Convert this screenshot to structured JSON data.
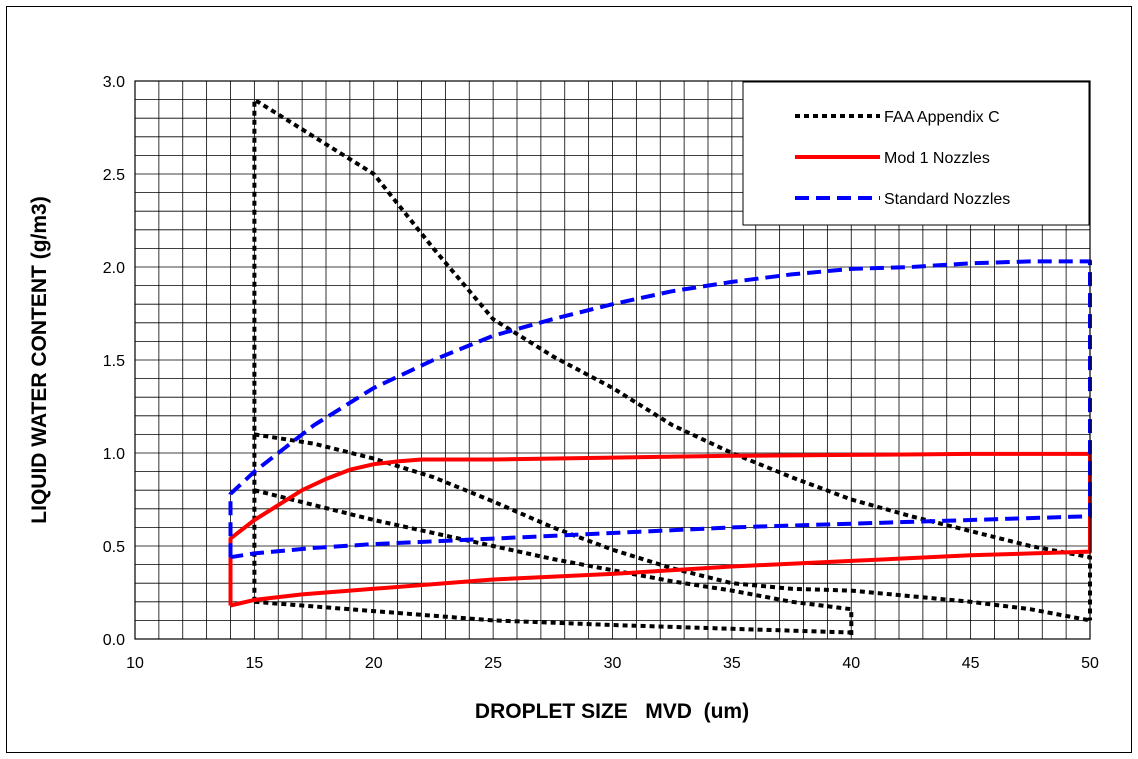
{
  "chart_data": {
    "type": "line",
    "xlabel": "DROPLET SIZE   MVD  (um)",
    "ylabel": "LIQUID WATER CONTENT (g/m3)",
    "xlim": [
      10,
      50
    ],
    "ylim": [
      0,
      3.0
    ],
    "x_ticks": [
      "10",
      "15",
      "20",
      "25",
      "30",
      "35",
      "40",
      "45",
      "50"
    ],
    "y_ticks": [
      "0.0",
      "0.5",
      "1.0",
      "1.5",
      "2.0",
      "2.5",
      "3.0"
    ],
    "grid": true,
    "legend_position": "top-right",
    "series": [
      {
        "name": "FAA Appendix C",
        "color": "#000000",
        "style": "dotted",
        "segments": [
          [
            [
              15,
              0.2
            ],
            [
              15,
              2.9
            ],
            [
              17.5,
              2.7
            ],
            [
              20,
              2.5
            ],
            [
              22.5,
              2.1
            ],
            [
              25,
              1.72
            ],
            [
              27.5,
              1.52
            ],
            [
              30,
              1.35
            ],
            [
              32.5,
              1.15
            ],
            [
              35,
              1.0
            ],
            [
              37.5,
              0.87
            ],
            [
              40,
              0.75
            ],
            [
              42.5,
              0.66
            ],
            [
              45,
              0.58
            ],
            [
              47.5,
              0.5
            ],
            [
              50,
              0.44
            ],
            [
              50,
              0.1
            ]
          ],
          [
            [
              15,
              0.2
            ],
            [
              20,
              0.15
            ],
            [
              25,
              0.1
            ],
            [
              30,
              0.075
            ],
            [
              35,
              0.055
            ],
            [
              40,
              0.035
            ]
          ],
          [
            [
              15,
              1.1
            ],
            [
              17.5,
              1.05
            ],
            [
              20,
              0.97
            ],
            [
              22.5,
              0.87
            ],
            [
              25,
              0.74
            ],
            [
              27.5,
              0.6
            ],
            [
              30,
              0.48
            ],
            [
              32.5,
              0.38
            ],
            [
              35,
              0.3
            ],
            [
              37.5,
              0.27
            ],
            [
              40,
              0.26
            ],
            [
              42.5,
              0.23
            ],
            [
              45,
              0.2
            ],
            [
              47.5,
              0.16
            ],
            [
              50,
              0.1
            ]
          ],
          [
            [
              15,
              0.8
            ],
            [
              17.5,
              0.72
            ],
            [
              20,
              0.64
            ],
            [
              22.5,
              0.57
            ],
            [
              25,
              0.5
            ],
            [
              27.5,
              0.43
            ],
            [
              30,
              0.37
            ],
            [
              32.5,
              0.31
            ],
            [
              35,
              0.26
            ],
            [
              37.5,
              0.2
            ],
            [
              40,
              0.16
            ],
            [
              40,
              0.02
            ]
          ]
        ]
      },
      {
        "name": "Mod 1 Nozzles",
        "color": "#ff0000",
        "style": "solid",
        "segments": [
          [
            [
              14,
              0.18
            ],
            [
              14,
              0.54
            ],
            [
              15,
              0.64
            ],
            [
              16,
              0.72
            ],
            [
              17,
              0.8
            ],
            [
              18,
              0.86
            ],
            [
              19,
              0.91
            ],
            [
              20,
              0.94
            ],
            [
              21,
              0.955
            ],
            [
              22,
              0.965
            ],
            [
              25,
              0.965
            ],
            [
              30,
              0.975
            ],
            [
              35,
              0.985
            ],
            [
              40,
              0.99
            ],
            [
              45,
              0.995
            ],
            [
              50,
              0.995
            ],
            [
              50,
              0.47
            ],
            [
              45,
              0.45
            ],
            [
              40,
              0.42
            ],
            [
              35,
              0.39
            ],
            [
              30,
              0.35
            ],
            [
              25,
              0.32
            ],
            [
              20,
              0.27
            ],
            [
              17,
              0.24
            ],
            [
              15,
              0.21
            ],
            [
              14,
              0.18
            ]
          ]
        ]
      },
      {
        "name": "Standard Nozzles",
        "color": "#0000ff",
        "style": "dashed",
        "segments": [
          [
            [
              14,
              0.44
            ],
            [
              14,
              0.78
            ],
            [
              15,
              0.9
            ],
            [
              17.5,
              1.15
            ],
            [
              20,
              1.35
            ],
            [
              22.5,
              1.5
            ],
            [
              25,
              1.63
            ],
            [
              27.5,
              1.72
            ],
            [
              30,
              1.8
            ],
            [
              32.5,
              1.87
            ],
            [
              35,
              1.92
            ],
            [
              37.5,
              1.96
            ],
            [
              40,
              1.99
            ],
            [
              42.5,
              2.0
            ],
            [
              45,
              2.02
            ],
            [
              47.5,
              2.03
            ],
            [
              50,
              2.03
            ],
            [
              50,
              0.66
            ],
            [
              45,
              0.64
            ],
            [
              40,
              0.62
            ],
            [
              35,
              0.6
            ],
            [
              30,
              0.57
            ],
            [
              25,
              0.54
            ],
            [
              20,
              0.51
            ],
            [
              17.5,
              0.49
            ],
            [
              15,
              0.46
            ],
            [
              14,
              0.44
            ]
          ]
        ]
      }
    ]
  }
}
